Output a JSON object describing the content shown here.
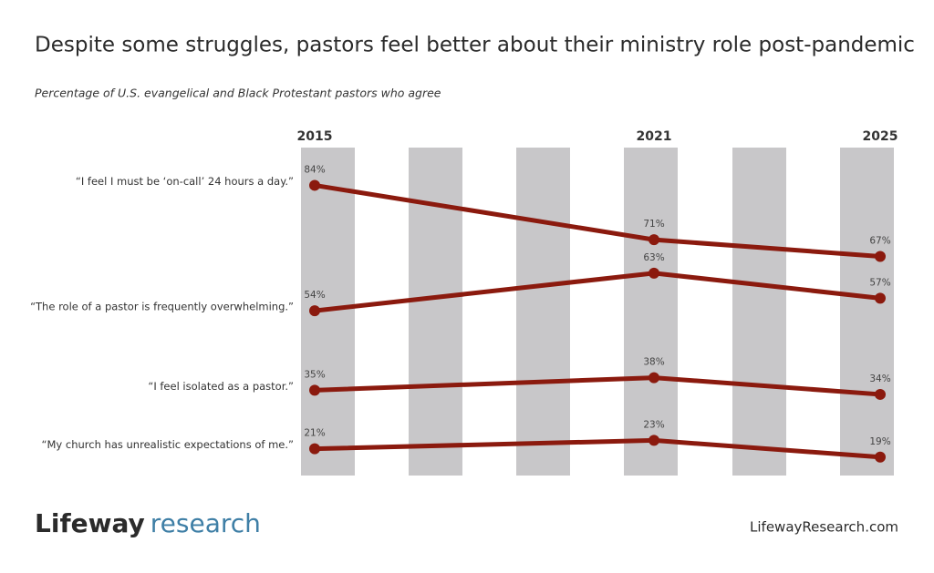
{
  "chart_data": {
    "type": "line",
    "title": "Despite some struggles, pastors feel better about their ministry role post-pandemic",
    "subtitle": "Percentage of U.S. evangelical and Black Protestant pastors who agree",
    "x": [
      2015,
      2021,
      2025
    ],
    "xlim": [
      2015,
      2025
    ],
    "xticks": [
      2015,
      2021,
      2025
    ],
    "ylim": [
      0,
      100
    ],
    "series": [
      {
        "name": "“I feel I must be ‘on-call’ 24 hours a day.”",
        "color": "#8b1a0e",
        "values": [
          84,
          71,
          67
        ],
        "value_labels": [
          "84%",
          "71%",
          "67%"
        ]
      },
      {
        "name": "“The role of a pastor is frequently overwhelming.”",
        "color": "#8b1a0e",
        "values": [
          54,
          63,
          57
        ],
        "value_labels": [
          "54%",
          "63%",
          "57%"
        ]
      },
      {
        "name": "“I feel isolated as a pastor.”",
        "color": "#8b1a0e",
        "values": [
          35,
          38,
          34
        ],
        "value_labels": [
          "35%",
          "38%",
          "34%"
        ]
      },
      {
        "name": "“My church has unrealistic expectations of me.”",
        "color": "#8b1a0e",
        "values": [
          21,
          23,
          19
        ],
        "value_labels": [
          "21%",
          "23%",
          "19%"
        ]
      }
    ]
  },
  "footer": {
    "brand": "Lifeway",
    "brand_suffix": "research",
    "url": "LifewayResearch.com"
  }
}
